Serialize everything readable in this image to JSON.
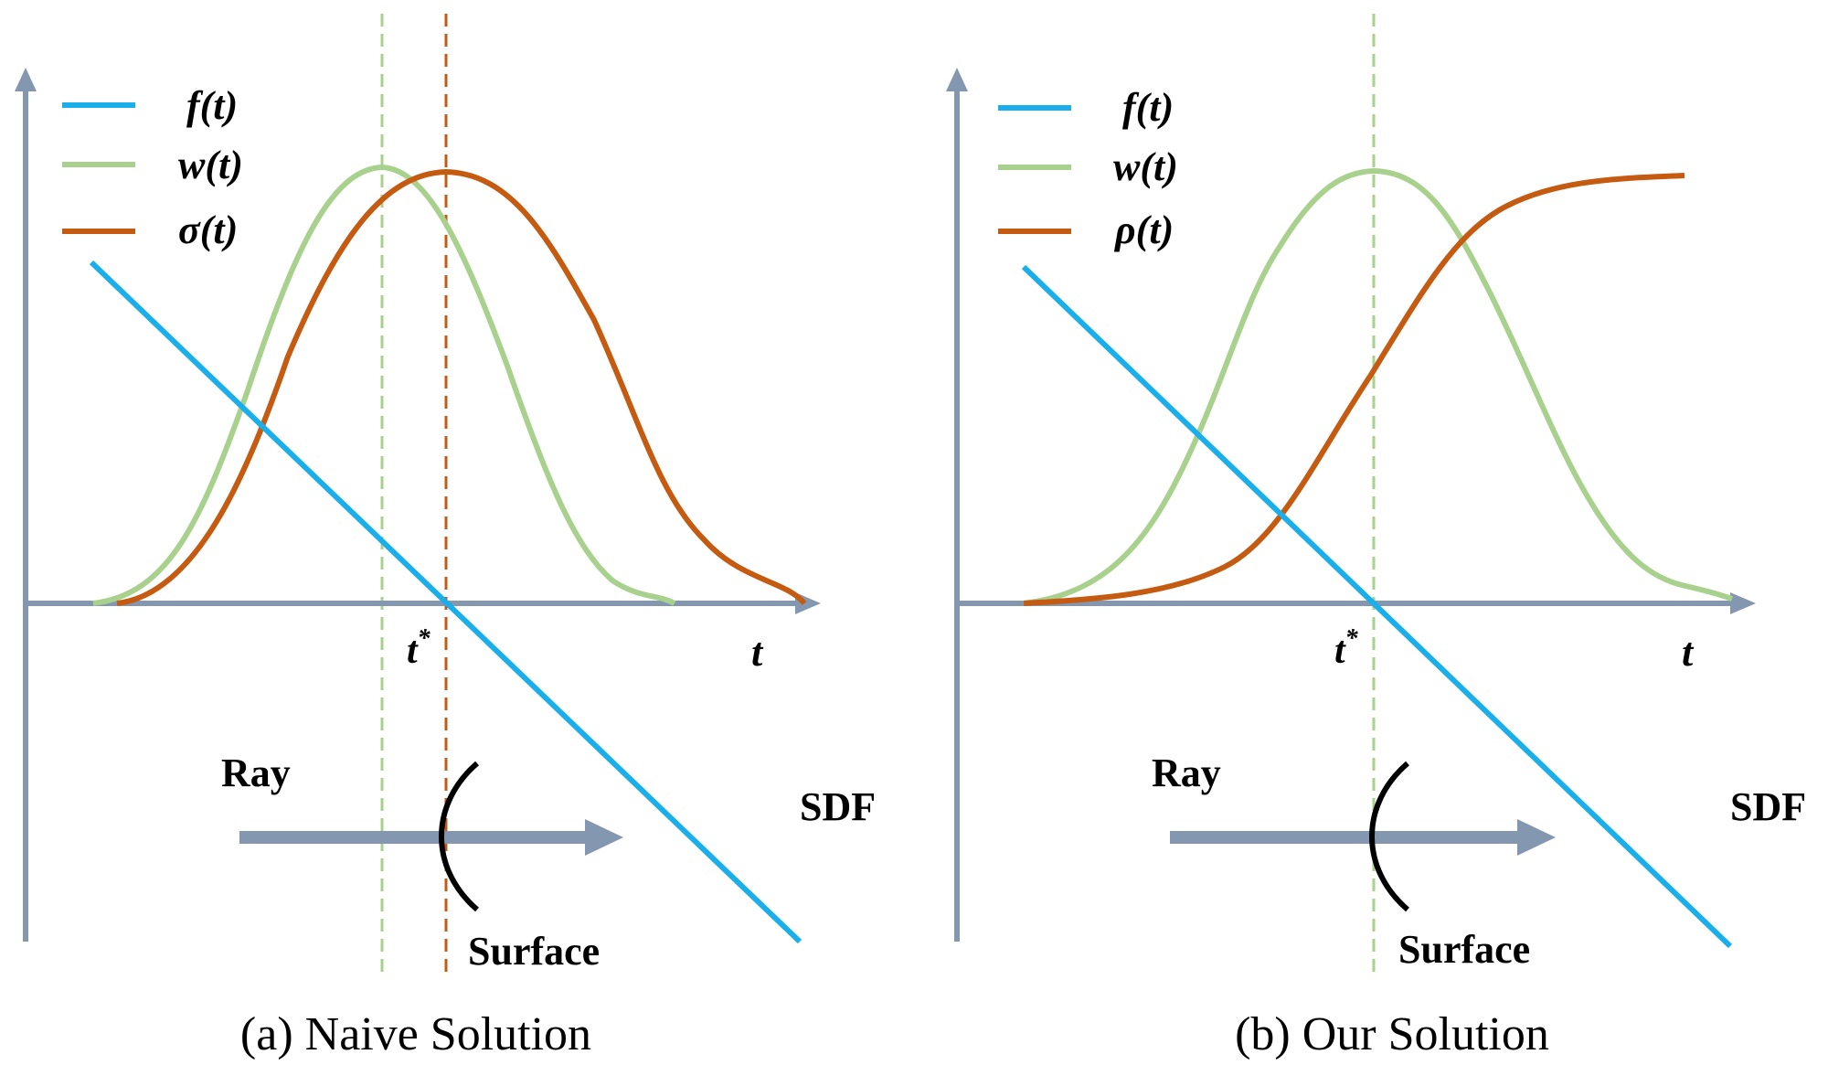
{
  "colors": {
    "axis": "#8497b0",
    "f_line": "#1aafea",
    "w_line": "#a9d18e",
    "orange_line": "#c55a11",
    "surface": "#000000",
    "text": "#000000"
  },
  "panels": [
    {
      "caption": "(a) Naive Solution",
      "legend": [
        {
          "key": "f",
          "label": "f(t)",
          "color_key": "f_line"
        },
        {
          "key": "w",
          "label": "w(t)",
          "color_key": "w_line"
        },
        {
          "key": "sigma",
          "label": "σ(t)",
          "color_key": "orange_line"
        }
      ],
      "axis_labels": {
        "x": "t",
        "marker": "t",
        "marker_sup": "*"
      },
      "ray_label": "Ray",
      "sdf_label": "SDF",
      "surface_label": "Surface"
    },
    {
      "caption": "(b) Our Solution",
      "legend": [
        {
          "key": "f",
          "label": "f(t)",
          "color_key": "f_line"
        },
        {
          "key": "w",
          "label": "w(t)",
          "color_key": "w_line"
        },
        {
          "key": "rho",
          "label": "ρ(t)",
          "color_key": "orange_line"
        }
      ],
      "axis_labels": {
        "x": "t",
        "marker": "t",
        "marker_sup": "*"
      },
      "ray_label": "Ray",
      "sdf_label": "SDF",
      "surface_label": "Surface"
    }
  ]
}
